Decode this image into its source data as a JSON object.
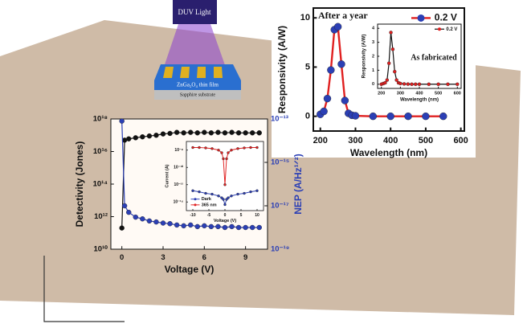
{
  "illustration": {
    "light": "DUV Light",
    "film": "ZnGa₂O₄ thin film",
    "substrate": "Sapphire substrate"
  },
  "chart_data": [
    {
      "type": "line",
      "annotation": "After a year",
      "x_label": "Wavelength (nm)",
      "y_label": "Responsivity (A/W)",
      "x": [
        200,
        210,
        220,
        230,
        240,
        250,
        260,
        270,
        280,
        290,
        300,
        350,
        400,
        450,
        500,
        550
      ],
      "series": [
        {
          "name": "0.2 V",
          "color": "#e02020",
          "marker_color": "#2b3fb5",
          "values": [
            0.2,
            0.5,
            1.8,
            4.7,
            8.8,
            9.1,
            5.3,
            1.6,
            0.3,
            0.1,
            0.05,
            0,
            0,
            0,
            0,
            0
          ]
        }
      ],
      "xlim": [
        180,
        610
      ],
      "xticks": [
        200,
        300,
        400,
        500,
        600
      ],
      "ylim": [
        -1.5,
        11
      ],
      "yticks": [
        0,
        5,
        10
      ],
      "legend": "upper right"
    },
    {
      "type": "line",
      "annotation": "As fabricated",
      "x_label": "Wavelength (nm)",
      "y_label": "Responsivity (A/W)",
      "x": [
        200,
        210,
        220,
        230,
        240,
        250,
        260,
        270,
        280,
        290,
        300,
        320,
        340,
        360,
        380,
        400,
        450,
        500,
        550,
        600
      ],
      "series": [
        {
          "name": "0.2 V",
          "color": "#111111",
          "marker_color": "#e02020",
          "values": [
            0,
            0.05,
            0.1,
            0.3,
            1.5,
            3.7,
            2.5,
            0.9,
            0.3,
            0.1,
            0.05,
            0.02,
            0.01,
            0,
            0,
            0,
            0,
            0,
            0,
            0
          ]
        }
      ],
      "xlim": [
        180,
        620
      ],
      "xticks": [
        200,
        300,
        400,
        500,
        600
      ],
      "ylim": [
        -0.3,
        4.3
      ],
      "yticks": [
        0,
        1,
        2,
        3,
        4
      ],
      "legend": "upper right"
    },
    {
      "type": "line",
      "x_label": "Voltage (V)",
      "y_label": "Detectivity (Jones)",
      "y2_label": "NEP (A/Hz¹ᐟ²)",
      "log_y": true,
      "log_y2": true,
      "x": [
        0,
        0.2,
        0.5,
        1,
        1.5,
        2,
        2.5,
        3,
        3.5,
        4,
        4.5,
        5,
        5.5,
        6,
        6.5,
        7,
        7.5,
        8,
        8.5,
        9,
        9.5,
        10
      ],
      "series": [
        {
          "color": "#111111",
          "marker_color": "#111111",
          "values": [
            200000000000.0,
            5e+16,
            6e+16,
            7e+16,
            8e+16,
            9e+16,
            1e+17,
            1.2e+17,
            1.3e+17,
            1.5e+17,
            1.4e+17,
            1.5e+17,
            1.4e+17,
            1.5e+17,
            1.4e+17,
            1.5e+17,
            1.4e+17,
            1.5e+17,
            1.4e+17,
            1.4e+17,
            1.4e+17,
            1.4e+17
          ]
        },
        {
          "color": "#2b3fb5",
          "marker_color": "#2b3fb5",
          "axis": "y2",
          "values": [
            8e-14,
            1e-17,
            5e-18,
            3e-18,
            2.5e-18,
            2e-18,
            1.8e-18,
            1.6e-18,
            1.5e-18,
            1.3e-18,
            1.2e-18,
            1.3e-18,
            1.1e-18,
            1.2e-18,
            1.1e-18,
            1.1e-18,
            1e-18,
            1.1e-18,
            1e-18,
            1e-18,
            1e-18,
            1e-18
          ]
        }
      ],
      "xlim": [
        -0.8,
        10.6
      ],
      "xticks": [
        0,
        3,
        6,
        9
      ],
      "ylim": [
        10000000000.0,
        1e+18
      ],
      "yticks": [
        {
          "value": 10000000000.0,
          "label": "10¹⁰"
        },
        {
          "value": 1000000000000.0,
          "label": "10¹²"
        },
        {
          "value": 100000000000000.0,
          "label": "10¹⁴"
        },
        {
          "value": 1e+16,
          "label": "10¹⁶"
        },
        {
          "value": 1e+18,
          "label": "10¹⁸"
        }
      ],
      "y2lim": [
        1e-19,
        1e-13
      ],
      "y2ticks": [
        {
          "value": 1e-19,
          "label": "10⁻¹⁹"
        },
        {
          "value": 1e-17,
          "label": "10⁻¹⁷"
        },
        {
          "value": 1e-15,
          "label": "10⁻¹⁵"
        },
        {
          "value": 1e-13,
          "label": "10⁻¹³"
        }
      ]
    },
    {
      "type": "line",
      "x_label": "Voltage (V)",
      "y_label": "Current (A)",
      "log_y": true,
      "x": [
        -10,
        -8,
        -6,
        -4,
        -2,
        -1,
        -0.5,
        0,
        0.5,
        1,
        2,
        4,
        6,
        8,
        10
      ],
      "series": [
        {
          "name": "Dark",
          "color": "#2b3fb5",
          "marker_color": "#2b3fb5",
          "values": [
            2e-13,
            1.5e-13,
            1e-13,
            8e-14,
            5e-14,
            3e-14,
            2e-14,
            5e-15,
            2e-14,
            3e-14,
            5e-14,
            8e-14,
            1e-13,
            1.5e-13,
            2e-13
          ]
        },
        {
          "name": "365 nm",
          "color": "#e02020",
          "marker_color": "#e02020",
          "values": [
            2e-08,
            2e-08,
            1.8e-08,
            1.5e-08,
            1e-08,
            5e-09,
            1e-09,
            1e-12,
            1e-09,
            5e-09,
            1e-08,
            1.5e-08,
            1.8e-08,
            2e-08,
            2e-08
          ]
        }
      ],
      "xlim": [
        -12,
        12
      ],
      "xticks": [
        -10,
        -5,
        0,
        5,
        10
      ],
      "ylim": [
        1e-15,
        1e-07
      ],
      "yticks": [
        {
          "value": 1e-14,
          "label": "10⁻¹⁴"
        },
        {
          "value": 1e-12,
          "label": "10⁻¹²"
        },
        {
          "value": 1e-10,
          "label": "10⁻¹⁰"
        },
        {
          "value": 1e-08,
          "label": "10⁻⁸"
        }
      ],
      "legend": "lower left"
    }
  ]
}
